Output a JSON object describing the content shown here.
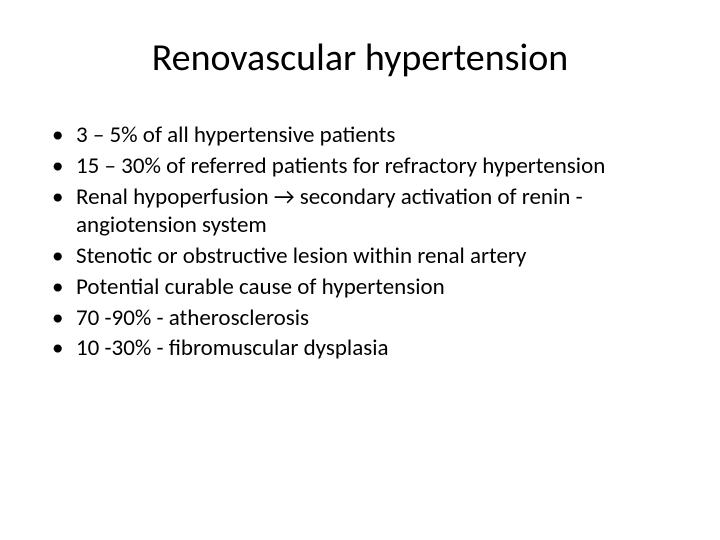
{
  "slide": {
    "title": "Renovascular hypertension",
    "title_fontsize": 38,
    "body_fontsize": 23,
    "background_color": "#ffffff",
    "text_color": "#000000",
    "bullet_char": "•",
    "bullets": [
      "3 – 5% of all hypertensive patients",
      "15 – 30% of referred patients for refractory hypertension",
      "Renal hypoperfusion → secondary activation of renin -angiotension system",
      "Stenotic or obstructive lesion within renal artery",
      "Potential curable cause of hypertension",
      "70 -90% - atherosclerosis",
      "10 -30% - fibromuscular dysplasia"
    ]
  }
}
